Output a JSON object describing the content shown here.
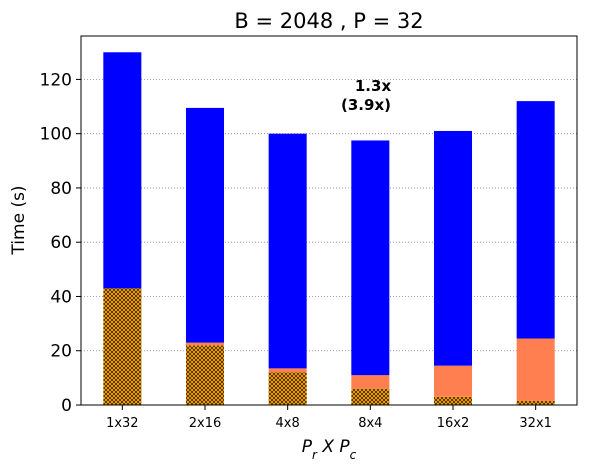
{
  "chart_data": {
    "type": "bar",
    "title": "B = 2048 ,  P = 32",
    "xlabel": "P_r X P_c",
    "ylabel": "Time (s)",
    "categories": [
      "1x32",
      "2x16",
      "4x8",
      "8x4",
      "16x2",
      "32x1"
    ],
    "ylim": [
      0,
      136
    ],
    "yticks": [
      0,
      20,
      40,
      60,
      80,
      100,
      120
    ],
    "grid": "horizontal dotted",
    "stacked": true,
    "series": [
      {
        "name": "",
        "color": "#ffa500",
        "pattern": "crosshatch",
        "values": [
          43,
          22,
          12,
          6,
          3,
          1.5
        ]
      },
      {
        "name": "",
        "color": "#ff7f50",
        "values": [
          0,
          1,
          1.5,
          5,
          11.5,
          23
        ]
      },
      {
        "name": "",
        "color": "#0000ff",
        "values": [
          87,
          86.5,
          86.5,
          86.5,
          86.5,
          87.5
        ]
      }
    ],
    "annotations": [
      "1.3x",
      "(3.9x)"
    ]
  }
}
